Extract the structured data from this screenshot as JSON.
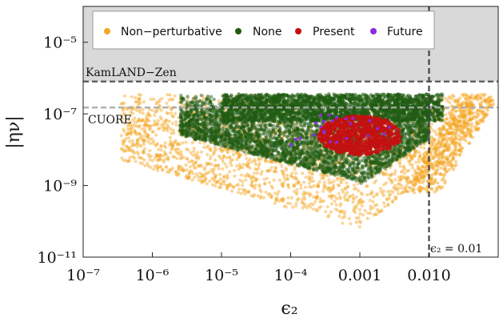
{
  "chart_data": {
    "type": "scatter",
    "title": "",
    "xlabel": "ϵ₂",
    "ylabel": "|ην|",
    "xscale": "log",
    "yscale": "log",
    "xlim": [
      1e-07,
      0.1
    ],
    "ylim": [
      1e-11,
      0.0001
    ],
    "x_tick_labels": [
      "10⁻⁷",
      "10⁻⁶",
      "10⁻⁵",
      "10⁻⁴",
      "0.001",
      "0.010"
    ],
    "x_tick_values": [
      1e-07,
      1e-06,
      1e-05,
      0.0001,
      0.001,
      0.01
    ],
    "y_tick_labels": [
      "10⁻¹¹",
      "10⁻⁹",
      "10⁻⁷",
      "10⁻⁵"
    ],
    "y_tick_values": [
      1e-11,
      1e-09,
      1e-07,
      1e-05
    ],
    "legend_position": "top",
    "grid": false,
    "series": [
      {
        "name": "Non−perturbative",
        "color": "#f5a623"
      },
      {
        "name": "None",
        "color": "#1f5b12"
      },
      {
        "name": "Present",
        "color": "#c41010"
      },
      {
        "name": "Future",
        "color": "#8a2be2"
      }
    ],
    "bounds": [
      {
        "label": "KamLAND−Zen",
        "y": 8e-07,
        "style": "dashed",
        "color": "#555555"
      },
      {
        "label": "CUORE",
        "y": 1.5e-07,
        "style": "dashed",
        "color": "#aaaaaa"
      }
    ],
    "vertical_line": {
      "label": "ϵ₂  = 0.01",
      "x": 0.01
    },
    "excluded_region": {
      "y_above": 8e-07,
      "color": "#d9d9d9"
    }
  }
}
